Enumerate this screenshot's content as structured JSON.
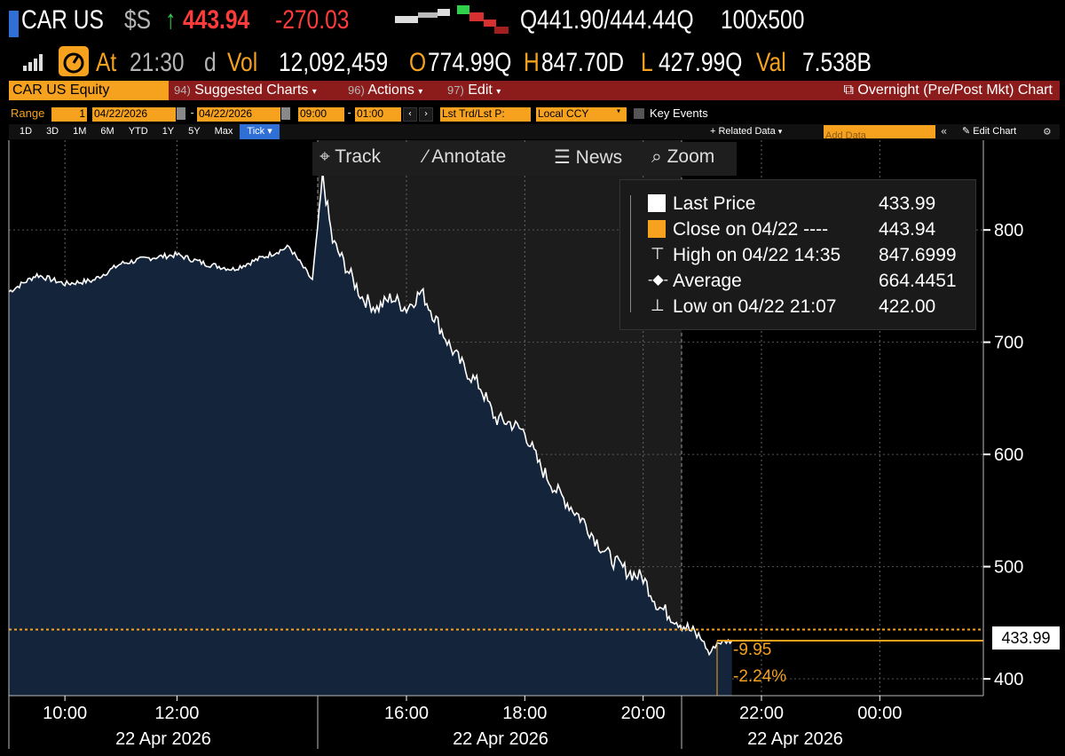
{
  "header": {
    "ticker": "CAR US",
    "currency": "$S",
    "last_price": "443.94",
    "change": "-270.03",
    "bid_ask": "Q441.90/444.44Q",
    "size": "100x500",
    "at_label": "At",
    "time": "21:30",
    "d_label": "d",
    "vol_label": "Vol",
    "volume": "12,092,459",
    "open_label": "O",
    "open": "774.99Q",
    "high_label": "H",
    "high": "847.70D",
    "low_label": "L",
    "low": "427.99Q",
    "val_label": "Val",
    "value": "7.538B"
  },
  "menubar": {
    "security": "CAR US Equity",
    "suggested": "Suggested Charts",
    "suggested_num": "94)",
    "actions": "Actions",
    "actions_num": "96)",
    "edit": "Edit",
    "edit_num": "97)",
    "overnight": "Overnight (Pre/Post Mkt) Chart"
  },
  "rangebar": {
    "range_label": "Range",
    "range_num": "1",
    "start_date": "04/22/2026",
    "end_date": "04/22/2026",
    "start_time": "09:00",
    "end_time": "01:00",
    "lst_trd": "Lst Trd/Lst P:",
    "ccy": "Local CCY",
    "key_events": "Key Events"
  },
  "periods": [
    "1D",
    "3D",
    "1M",
    "6M",
    "YTD",
    "1Y",
    "5Y",
    "Max",
    "Tick"
  ],
  "related": "+ Related Data",
  "add_data_placeholder": "Add Data",
  "edit_chart": "Edit Chart",
  "chart_toolbar": {
    "track": "Track",
    "annotate": "Annotate",
    "news": "News",
    "zoom": "Zoom"
  },
  "legend": {
    "last_label": "Last Price",
    "last_value": "433.99",
    "close_label": "Close on 04/22 ----",
    "close_value": "443.94",
    "high_label": "High on 04/22 14:35",
    "high_value": "847.6999",
    "avg_label": "Average",
    "avg_value": "664.4451",
    "low_label": "Low on 04/22 21:07",
    "low_value": "422.00"
  },
  "price_tag": "433.99",
  "change_abs": "-9.95",
  "change_pct": "-2.24%",
  "colors": {
    "accent": "#f6a21f",
    "menu_red": "#8c1b1b",
    "area_fill": "#14253b",
    "session_shade": "#1c1c1c"
  },
  "chart_data": {
    "type": "area",
    "y_ticks": [
      "800",
      "700",
      "600",
      "500",
      "400"
    ],
    "x_ticks": [
      "10:00",
      "12:00",
      "16:00",
      "18:00",
      "20:00",
      "22:00",
      "00:00"
    ],
    "date_labels": [
      "22 Apr 2026",
      "22 Apr 2026",
      "22 Apr 2026"
    ],
    "ylim": [
      385,
      880
    ],
    "x": [
      "09:00",
      "09:30",
      "10:00",
      "10:30",
      "11:00",
      "11:30",
      "12:00",
      "12:30",
      "13:00",
      "13:30",
      "14:00",
      "14:25",
      "14:35",
      "14:45",
      "15:00",
      "15:15",
      "15:30",
      "15:45",
      "16:00",
      "16:15",
      "16:30",
      "16:45",
      "17:00",
      "17:15",
      "17:30",
      "17:45",
      "18:00",
      "18:15",
      "18:30",
      "18:45",
      "19:00",
      "19:15",
      "19:30",
      "19:45",
      "20:00",
      "20:15",
      "20:30",
      "20:45",
      "21:00",
      "21:07",
      "21:15",
      "21:30"
    ],
    "values": [
      745,
      760,
      752,
      755,
      770,
      775,
      778,
      770,
      765,
      775,
      785,
      755,
      847.7,
      790,
      765,
      740,
      730,
      740,
      730,
      745,
      720,
      695,
      675,
      660,
      632,
      628,
      620,
      590,
      570,
      555,
      540,
      520,
      505,
      495,
      490,
      465,
      455,
      445,
      435,
      422,
      432,
      433.99
    ],
    "last_price": 433.99,
    "close_line": 443.94
  }
}
